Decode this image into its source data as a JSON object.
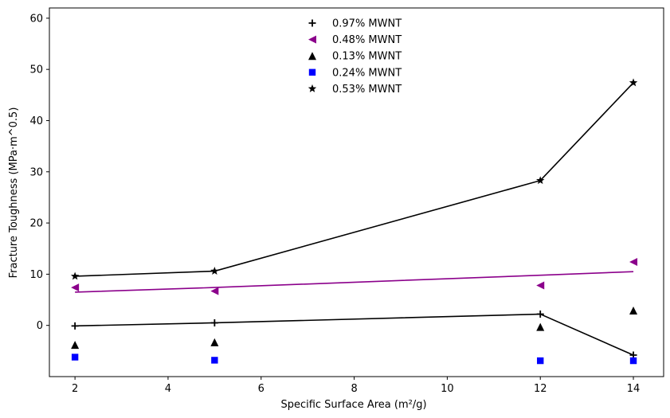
{
  "chart_data": {
    "type": "scatter",
    "xlabel": "Specific Surface Area (m²/g)",
    "ylabel": "Fracture Toughness (MPa·m^0.5)",
    "xlim": [
      1.45,
      14.65
    ],
    "ylim": [
      -10,
      62
    ],
    "xticks": [
      2,
      4,
      6,
      8,
      10,
      12,
      14
    ],
    "yticks": [
      0,
      10,
      20,
      30,
      40,
      50,
      60
    ],
    "legend_position": "top-center",
    "x": [
      2,
      5,
      12,
      14
    ],
    "series": [
      {
        "name": "0.97% MWNT",
        "marker": "plus",
        "color": "#000000",
        "values": [
          -0.1,
          0.5,
          2.2,
          -5.8
        ]
      },
      {
        "name": "0.48% MWNT",
        "marker": "triangle-left",
        "color": "#8b008b",
        "values": [
          7.4,
          6.7,
          7.8,
          12.4
        ]
      },
      {
        "name": "0.13% MWNT",
        "marker": "triangle-up",
        "color": "#000000",
        "values": [
          -3.8,
          -3.3,
          -0.3,
          2.9
        ]
      },
      {
        "name": "0.24% MWNT",
        "marker": "square",
        "color": "#0000ff",
        "values": [
          -6.2,
          -6.8,
          -6.9,
          -6.9
        ]
      },
      {
        "name": "0.53% MWNT",
        "marker": "star",
        "color": "#000000",
        "values": [
          9.6,
          10.6,
          28.3,
          47.4
        ]
      }
    ],
    "lines": [
      {
        "color": "#000000",
        "x": [
          2,
          5,
          12,
          14
        ],
        "y": [
          9.6,
          10.6,
          28.3,
          47.4
        ]
      },
      {
        "color": "#8b008b",
        "x": [
          2,
          5,
          12,
          14
        ],
        "y": [
          6.5,
          7.4,
          9.8,
          10.5
        ]
      },
      {
        "color": "#000000",
        "x": [
          2,
          5,
          12,
          14
        ],
        "y": [
          -0.1,
          0.5,
          2.2,
          -5.8
        ]
      }
    ]
  }
}
